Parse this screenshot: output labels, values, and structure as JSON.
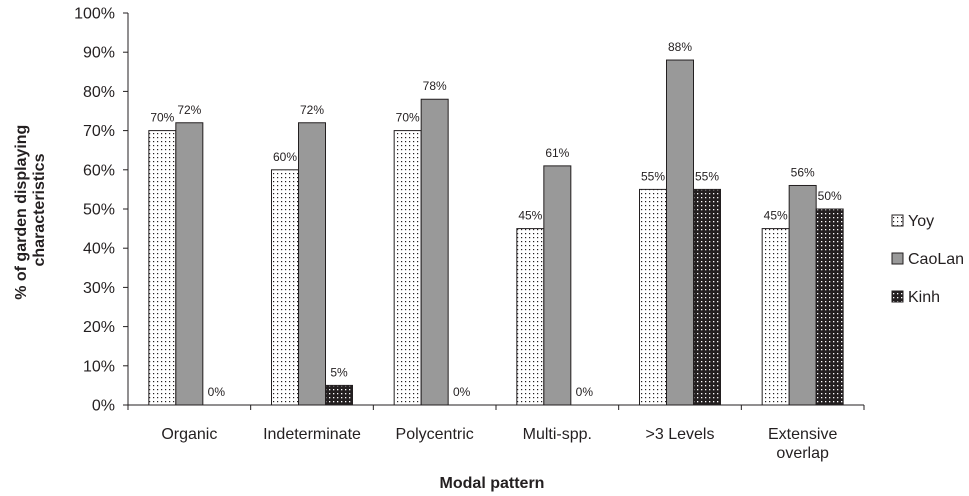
{
  "chart_data": {
    "type": "bar",
    "title": "",
    "xlabel": "Modal pattern",
    "ylabel_lines": [
      "% of garden displaying",
      "characteristics"
    ],
    "ylim": [
      0,
      100
    ],
    "ytick_labels": [
      "0%",
      "10%",
      "20%",
      "30%",
      "40%",
      "50%",
      "60%",
      "70%",
      "80%",
      "90%",
      "100%"
    ],
    "yticks": [
      0,
      10,
      20,
      30,
      40,
      50,
      60,
      70,
      80,
      90,
      100
    ],
    "categories": [
      [
        "Organic"
      ],
      [
        "Indeterminate"
      ],
      [
        "Polycentric"
      ],
      [
        "Multi-spp."
      ],
      [
        ">3 Levels"
      ],
      [
        "Extensive",
        "overlap"
      ]
    ],
    "series": [
      {
        "name": "Yoy",
        "values": [
          70,
          60,
          70,
          45,
          55,
          45
        ],
        "labels": [
          "70%",
          "60%",
          "70%",
          "45%",
          "55%",
          "45%"
        ],
        "fill": "dotted-light"
      },
      {
        "name": "CaoLan",
        "values": [
          72,
          72,
          78,
          61,
          88,
          56
        ],
        "labels": [
          "72%",
          "72%",
          "78%",
          "61%",
          "88%",
          "56%"
        ],
        "fill": "#999999"
      },
      {
        "name": "Kinh",
        "values": [
          0,
          5,
          0,
          0,
          55,
          50
        ],
        "labels": [
          "0%",
          "5%",
          "0%",
          "0%",
          "55%",
          "50%"
        ],
        "fill": "dotted-dark"
      }
    ],
    "grid": false,
    "legend_position": "right"
  }
}
